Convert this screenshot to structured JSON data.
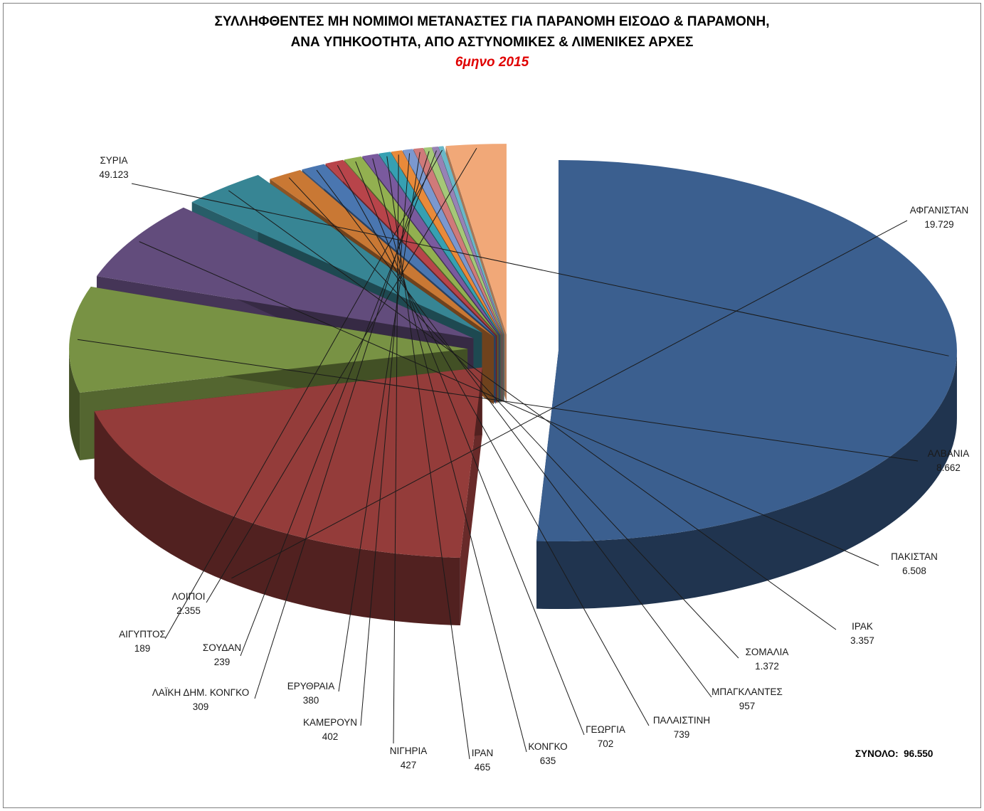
{
  "title_line1": "ΣΥΛΛΗΦΘΕΝΤΕΣ ΜΗ ΝΟΜΙΜΟΙ ΜΕΤΑΝΑΣΤΕΣ ΓΙΑ ΠΑΡΑΝΟΜΗ ΕΙΣΟΔΟ & ΠΑΡΑΜΟΝΗ,",
  "title_line2": "ΑΝΑ ΥΠΗΚΟΟΤΗΤΑ,   ΑΠΟ ΑΣΤΥΝΟΜΙΚΕΣ & ΛΙΜΕΝΙΚΕΣ ΑΡΧΕΣ",
  "title_line3": "6μηνο 2015",
  "total_text": "ΣΥΝΟΛΟ:  96.550",
  "chart_data": {
    "type": "pie",
    "title": "ΣΥΛΛΗΦΘΕΝΤΕΣ ΜΗ ΝΟΜΙΜΟΙ ΜΕΤΑΝΑΣΤΕΣ ΓΙΑ ΠΑΡΑΝΟΜΗ ΕΙΣΟΔΟ & ΠΑΡΑΜΟΝΗ, ΑΝΑ ΥΠΗΚΟΟΤΗΤΑ, ΑΠΟ ΑΣΤΥΝΟΜΙΚΕΣ & ΛΙΜΕΝΙΚΕΣ ΑΡΧΕΣ",
    "subtitle": "6μηνο 2015",
    "style": "3d-exploded",
    "slices": [
      {
        "label": "ΣΥΡΙΑ",
        "value": 49123,
        "value_text": "49.123",
        "color": "#3b5f8f"
      },
      {
        "label": "ΑΦΓΑΝΙΣΤΑΝ",
        "value": 19729,
        "value_text": "19.729",
        "color": "#943c3a"
      },
      {
        "label": "ΑΛΒΑΝΙΑ",
        "value": 8662,
        "value_text": "8.662",
        "color": "#789244"
      },
      {
        "label": "ΠΑΚΙΣΤΑΝ",
        "value": 6508,
        "value_text": "6.508",
        "color": "#624c7c"
      },
      {
        "label": "ΙΡΑΚ",
        "value": 3357,
        "value_text": "3.357",
        "color": "#378594"
      },
      {
        "label": "ΣΟΜΑΛΙΑ",
        "value": 1372,
        "value_text": "1.372",
        "color": "#c97834"
      },
      {
        "label": "ΜΠΑΓΚΛΑΝΤΕΣ",
        "value": 957,
        "value_text": "957",
        "color": "#4a76b0"
      },
      {
        "label": "ΠΑΛΑΙΣΤΙΝΗ",
        "value": 739,
        "value_text": "739",
        "color": "#b8444a"
      },
      {
        "label": "ΓΕΩΡΓΙΑ",
        "value": 702,
        "value_text": "702",
        "color": "#92b050"
      },
      {
        "label": "ΚΟΝΓΚΟ",
        "value": 635,
        "value_text": "635",
        "color": "#7a5a9e"
      },
      {
        "label": "ΙΡΑΝ",
        "value": 465,
        "value_text": "465",
        "color": "#36a0b2"
      },
      {
        "label": "ΝΙΓΗΡΙΑ",
        "value": 427,
        "value_text": "427",
        "color": "#e98a3a"
      },
      {
        "label": "ΚΑΜΕΡΟΥΝ",
        "value": 402,
        "value_text": "402",
        "color": "#7b98cf"
      },
      {
        "label": "ΕΡΥΘΡΑΙΑ",
        "value": 380,
        "value_text": "380",
        "color": "#cf7a7a"
      },
      {
        "label": "ΛΑΪΚΗ ΔΗΜ. ΚΟΝΓΚΟ",
        "value": 309,
        "value_text": "309",
        "color": "#a5c878"
      },
      {
        "label": "ΣΟΥΔΑΝ",
        "value": 239,
        "value_text": "239",
        "color": "#9782b5"
      },
      {
        "label": "ΑΙΓΥΠΤΟΣ",
        "value": 189,
        "value_text": "189",
        "color": "#6ab8c8"
      },
      {
        "label": "ΛΟΙΠΟΙ",
        "value": 2355,
        "value_text": "2.355",
        "color": "#f1a878"
      }
    ]
  }
}
